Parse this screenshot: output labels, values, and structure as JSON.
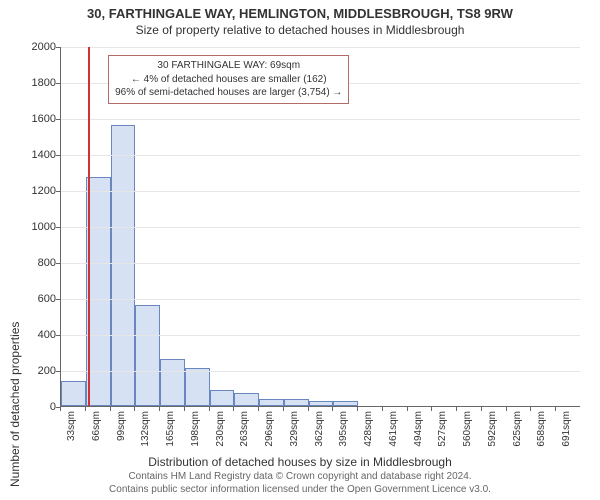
{
  "title_main": "30, FARTHINGALE WAY, HEMLINGTON, MIDDLESBROUGH, TS8 9RW",
  "title_sub": "Size of property relative to detached houses in Middlesbrough",
  "ylabel": "Number of detached properties",
  "xlabel": "Distribution of detached houses by size in Middlesbrough",
  "chart": {
    "type": "histogram",
    "ylim": [
      0,
      2000
    ],
    "ytick_step": 200,
    "background_color": "#ffffff",
    "grid_color": "#e6e6e6",
    "bar_fill": "#d6e1f4",
    "bar_border": "#6a86bf",
    "refline_color": "#cc3333",
    "refline_x_value": 69,
    "x_categories": [
      "33sqm",
      "66sqm",
      "99sqm",
      "132sqm",
      "165sqm",
      "198sqm",
      "230sqm",
      "263sqm",
      "296sqm",
      "329sqm",
      "362sqm",
      "395sqm",
      "428sqm",
      "461sqm",
      "494sqm",
      "527sqm",
      "560sqm",
      "592sqm",
      "625sqm",
      "658sqm",
      "691sqm"
    ],
    "x_bin_starts": [
      33,
      66,
      99,
      132,
      165,
      198,
      230,
      263,
      296,
      329,
      362,
      395,
      428,
      461,
      494,
      527,
      560,
      592,
      625,
      658,
      691
    ],
    "values": [
      140,
      1270,
      1560,
      560,
      260,
      210,
      90,
      70,
      40,
      40,
      30,
      30,
      0,
      0,
      0,
      0,
      0,
      0,
      0,
      0,
      0
    ]
  },
  "annotation": {
    "line1": "30 FARTHINGALE WAY: 69sqm",
    "line2": "← 4% of detached houses are smaller (162)",
    "line3": "96% of semi-detached houses are larger (3,754) →",
    "border_color": "#b56a6a",
    "fontsize": 10
  },
  "footer_line1": "Contains HM Land Registry data © Crown copyright and database right 2024.",
  "footer_line2": "Contains public sector information licensed under the Open Government Licence v3.0."
}
